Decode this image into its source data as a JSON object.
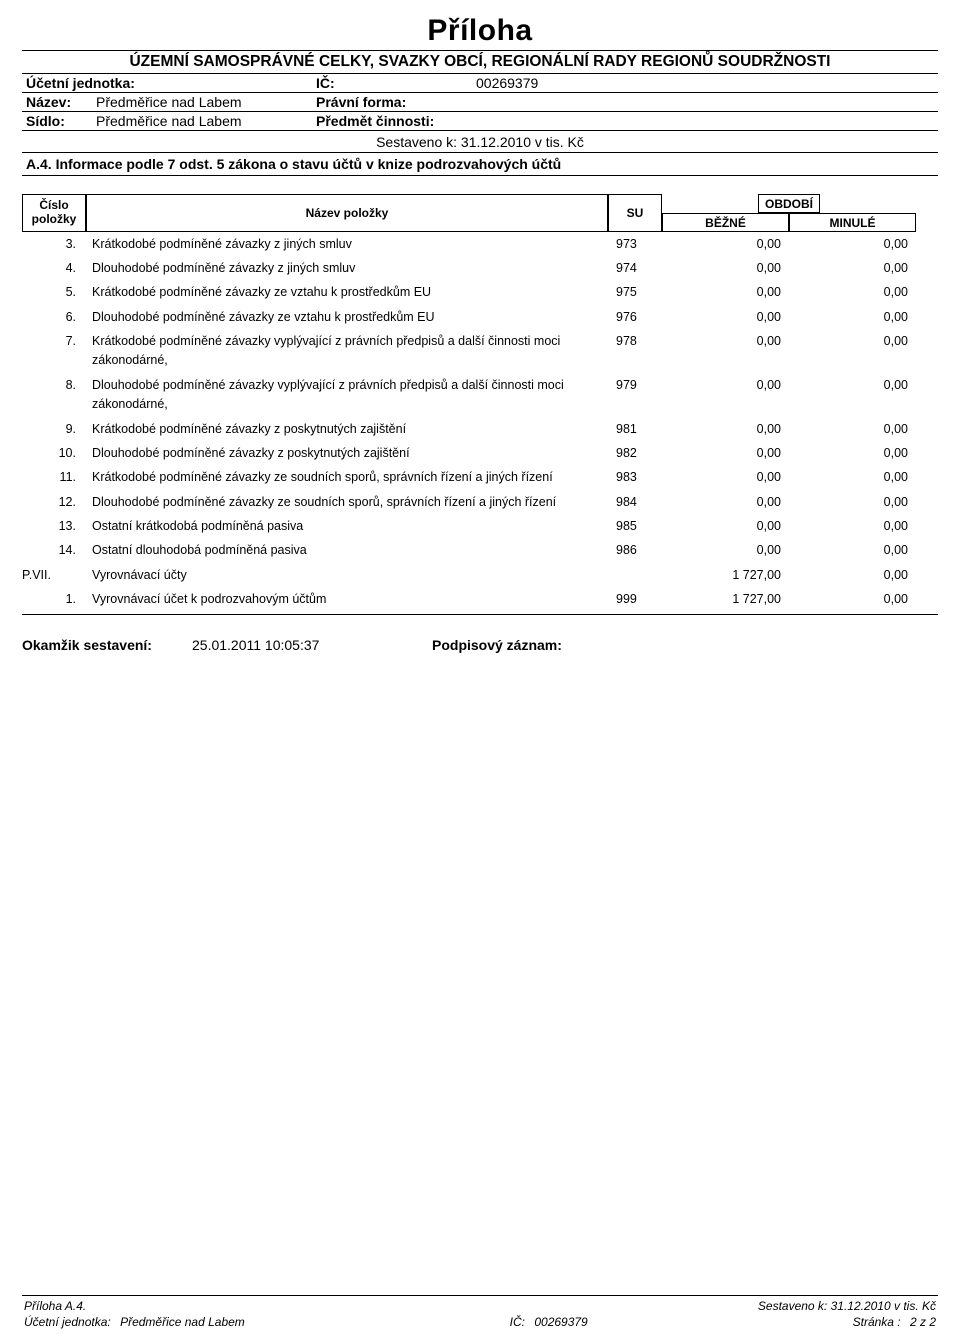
{
  "title": "Příloha",
  "subtitle": "ÚZEMNÍ SAMOSPRÁVNÉ CELKY, SVAZKY OBCÍ, REGIONÁLNÍ RADY REGIONŮ SOUDRŽNOSTI",
  "meta": {
    "unit_label": "Účetní jednotka:",
    "ic_label": "IČ:",
    "ic_value": "00269379",
    "name_label": "Název:",
    "name_value": "Předměřice nad Labem",
    "form_label": "Právní forma:",
    "form_value": "",
    "seat_label": "Sídlo:",
    "seat_value": "Předměřice nad Labem",
    "activity_label": "Předmět činnosti:",
    "activity_value": ""
  },
  "compiled": "Sestaveno k: 31.12.2010 v tis. Kč",
  "section": "A.4. Informace podle 7 odst. 5 zákona o stavu účtů v knize podrozvahových účtů",
  "thead": {
    "col_num": "Číslo položky",
    "col_name": "Název položky",
    "col_su": "SU",
    "col_period": "OBDOBÍ",
    "col_current": "BĚŽNÉ",
    "col_prev": "MINULÉ"
  },
  "rows": [
    {
      "num": "3.",
      "name": "Krátkodobé podmíněné závazky z jiných smluv",
      "su": "973",
      "b": "0,00",
      "m": "0,00"
    },
    {
      "num": "4.",
      "name": "Dlouhodobé podmíněné závazky z jiných smluv",
      "su": "974",
      "b": "0,00",
      "m": "0,00"
    },
    {
      "num": "5.",
      "name": "Krátkodobé podmíněné závazky ze vztahu k prostředkům EU",
      "su": "975",
      "b": "0,00",
      "m": "0,00"
    },
    {
      "num": "6.",
      "name": "Dlouhodobé podmíněné závazky ze vztahu k prostředkům EU",
      "su": "976",
      "b": "0,00",
      "m": "0,00"
    },
    {
      "num": "7.",
      "name": "Krátkodobé podmíněné závazky vyplývající z právních předpisů a další činnosti moci zákonodárné,",
      "su": "978",
      "b": "0,00",
      "m": "0,00"
    },
    {
      "num": "8.",
      "name": "Dlouhodobé podmíněné závazky vyplývající z právních předpisů a další činnosti moci zákonodárné,",
      "su": "979",
      "b": "0,00",
      "m": "0,00"
    },
    {
      "num": "9.",
      "name": "Krátkodobé podmíněné závazky z poskytnutých zajištění",
      "su": "981",
      "b": "0,00",
      "m": "0,00"
    },
    {
      "num": "10.",
      "name": "Dlouhodobé podmíněné závazky z poskytnutých zajištění",
      "su": "982",
      "b": "0,00",
      "m": "0,00"
    },
    {
      "num": "11.",
      "name": "Krátkodobé podmíněné závazky ze soudních sporů, správních řízení a jiných řízení",
      "su": "983",
      "b": "0,00",
      "m": "0,00"
    },
    {
      "num": "12.",
      "name": "Dlouhodobé podmíněné závazky ze soudních sporů, správních řízení a jiných řízení",
      "su": "984",
      "b": "0,00",
      "m": "0,00"
    },
    {
      "num": "13.",
      "name": "Ostatní krátkodobá podmíněná pasiva",
      "su": "985",
      "b": "0,00",
      "m": "0,00"
    },
    {
      "num": "14.",
      "name": "Ostatní dlouhodobá podmíněná pasiva",
      "su": "986",
      "b": "0,00",
      "m": "0,00"
    },
    {
      "num": "P.VII.",
      "name": "Vyrovnávací účty",
      "su": "",
      "b": "1 727,00",
      "m": "0,00",
      "section": true
    },
    {
      "num": "1.",
      "name": "Vyrovnávací účet k podrozvahovým účtům",
      "su": "999",
      "b": "1 727,00",
      "m": "0,00"
    }
  ],
  "okamzik": {
    "label": "Okamžik sestavení:",
    "value": "25.01.2011 10:05:37",
    "sig_label": "Podpisový záznam:"
  },
  "footer": {
    "left1": "Příloha  A.4.",
    "right1": "Sestaveno k: 31.12.2010 v tis. Kč",
    "left2_label": "Účetní jednotka:",
    "left2_value": "Předměřice nad Labem",
    "mid2_label": "IČ:",
    "mid2_value": "00269379",
    "right2_label": "Stránka :",
    "right2_value": "2  z   2"
  }
}
